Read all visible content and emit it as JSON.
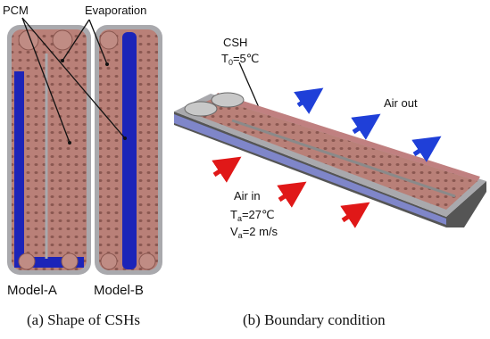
{
  "labels": {
    "pcm": "PCM",
    "evaporation": "Evaporation",
    "model_a": "Model-A",
    "model_b": "Model-B",
    "csh": "CSH",
    "t0": {
      "symbol": "T",
      "subscript": "0",
      "value": "=5℃"
    },
    "air_out": "Air out",
    "air_in": "Air in",
    "ta": {
      "symbol": "T",
      "subscript": "a",
      "value": "=27℃"
    },
    "va": {
      "symbol": "V",
      "subscript": "a",
      "value": "=2 m/s"
    }
  },
  "captions": {
    "a": "(a) Shape of CSHs",
    "b": "(b) Boundary condition"
  }
}
